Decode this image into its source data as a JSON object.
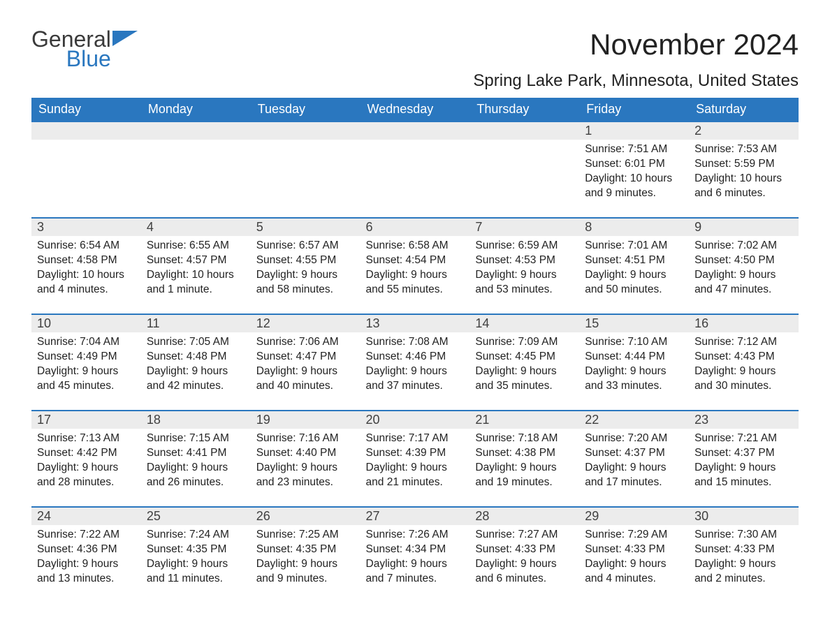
{
  "logo": {
    "word1": "General",
    "word2": "Blue"
  },
  "colors": {
    "brand_blue": "#2a77bf",
    "header_bg": "#2a77bf",
    "header_text": "#ffffff",
    "daynum_bg": "#ececec",
    "text": "#222222",
    "page_bg": "#ffffff"
  },
  "title": "November 2024",
  "location": "Spring Lake Park, Minnesota, United States",
  "day_headers": [
    "Sunday",
    "Monday",
    "Tuesday",
    "Wednesday",
    "Thursday",
    "Friday",
    "Saturday"
  ],
  "weeks": [
    [
      {
        "blank": true
      },
      {
        "blank": true
      },
      {
        "blank": true
      },
      {
        "blank": true
      },
      {
        "blank": true
      },
      {
        "day": "1",
        "sunrise": "Sunrise: 7:51 AM",
        "sunset": "Sunset: 6:01 PM",
        "daylight": "Daylight: 10 hours and 9 minutes."
      },
      {
        "day": "2",
        "sunrise": "Sunrise: 7:53 AM",
        "sunset": "Sunset: 5:59 PM",
        "daylight": "Daylight: 10 hours and 6 minutes."
      }
    ],
    [
      {
        "day": "3",
        "sunrise": "Sunrise: 6:54 AM",
        "sunset": "Sunset: 4:58 PM",
        "daylight": "Daylight: 10 hours and 4 minutes."
      },
      {
        "day": "4",
        "sunrise": "Sunrise: 6:55 AM",
        "sunset": "Sunset: 4:57 PM",
        "daylight": "Daylight: 10 hours and 1 minute."
      },
      {
        "day": "5",
        "sunrise": "Sunrise: 6:57 AM",
        "sunset": "Sunset: 4:55 PM",
        "daylight": "Daylight: 9 hours and 58 minutes."
      },
      {
        "day": "6",
        "sunrise": "Sunrise: 6:58 AM",
        "sunset": "Sunset: 4:54 PM",
        "daylight": "Daylight: 9 hours and 55 minutes."
      },
      {
        "day": "7",
        "sunrise": "Sunrise: 6:59 AM",
        "sunset": "Sunset: 4:53 PM",
        "daylight": "Daylight: 9 hours and 53 minutes."
      },
      {
        "day": "8",
        "sunrise": "Sunrise: 7:01 AM",
        "sunset": "Sunset: 4:51 PM",
        "daylight": "Daylight: 9 hours and 50 minutes."
      },
      {
        "day": "9",
        "sunrise": "Sunrise: 7:02 AM",
        "sunset": "Sunset: 4:50 PM",
        "daylight": "Daylight: 9 hours and 47 minutes."
      }
    ],
    [
      {
        "day": "10",
        "sunrise": "Sunrise: 7:04 AM",
        "sunset": "Sunset: 4:49 PM",
        "daylight": "Daylight: 9 hours and 45 minutes."
      },
      {
        "day": "11",
        "sunrise": "Sunrise: 7:05 AM",
        "sunset": "Sunset: 4:48 PM",
        "daylight": "Daylight: 9 hours and 42 minutes."
      },
      {
        "day": "12",
        "sunrise": "Sunrise: 7:06 AM",
        "sunset": "Sunset: 4:47 PM",
        "daylight": "Daylight: 9 hours and 40 minutes."
      },
      {
        "day": "13",
        "sunrise": "Sunrise: 7:08 AM",
        "sunset": "Sunset: 4:46 PM",
        "daylight": "Daylight: 9 hours and 37 minutes."
      },
      {
        "day": "14",
        "sunrise": "Sunrise: 7:09 AM",
        "sunset": "Sunset: 4:45 PM",
        "daylight": "Daylight: 9 hours and 35 minutes."
      },
      {
        "day": "15",
        "sunrise": "Sunrise: 7:10 AM",
        "sunset": "Sunset: 4:44 PM",
        "daylight": "Daylight: 9 hours and 33 minutes."
      },
      {
        "day": "16",
        "sunrise": "Sunrise: 7:12 AM",
        "sunset": "Sunset: 4:43 PM",
        "daylight": "Daylight: 9 hours and 30 minutes."
      }
    ],
    [
      {
        "day": "17",
        "sunrise": "Sunrise: 7:13 AM",
        "sunset": "Sunset: 4:42 PM",
        "daylight": "Daylight: 9 hours and 28 minutes."
      },
      {
        "day": "18",
        "sunrise": "Sunrise: 7:15 AM",
        "sunset": "Sunset: 4:41 PM",
        "daylight": "Daylight: 9 hours and 26 minutes."
      },
      {
        "day": "19",
        "sunrise": "Sunrise: 7:16 AM",
        "sunset": "Sunset: 4:40 PM",
        "daylight": "Daylight: 9 hours and 23 minutes."
      },
      {
        "day": "20",
        "sunrise": "Sunrise: 7:17 AM",
        "sunset": "Sunset: 4:39 PM",
        "daylight": "Daylight: 9 hours and 21 minutes."
      },
      {
        "day": "21",
        "sunrise": "Sunrise: 7:18 AM",
        "sunset": "Sunset: 4:38 PM",
        "daylight": "Daylight: 9 hours and 19 minutes."
      },
      {
        "day": "22",
        "sunrise": "Sunrise: 7:20 AM",
        "sunset": "Sunset: 4:37 PM",
        "daylight": "Daylight: 9 hours and 17 minutes."
      },
      {
        "day": "23",
        "sunrise": "Sunrise: 7:21 AM",
        "sunset": "Sunset: 4:37 PM",
        "daylight": "Daylight: 9 hours and 15 minutes."
      }
    ],
    [
      {
        "day": "24",
        "sunrise": "Sunrise: 7:22 AM",
        "sunset": "Sunset: 4:36 PM",
        "daylight": "Daylight: 9 hours and 13 minutes."
      },
      {
        "day": "25",
        "sunrise": "Sunrise: 7:24 AM",
        "sunset": "Sunset: 4:35 PM",
        "daylight": "Daylight: 9 hours and 11 minutes."
      },
      {
        "day": "26",
        "sunrise": "Sunrise: 7:25 AM",
        "sunset": "Sunset: 4:35 PM",
        "daylight": "Daylight: 9 hours and 9 minutes."
      },
      {
        "day": "27",
        "sunrise": "Sunrise: 7:26 AM",
        "sunset": "Sunset: 4:34 PM",
        "daylight": "Daylight: 9 hours and 7 minutes."
      },
      {
        "day": "28",
        "sunrise": "Sunrise: 7:27 AM",
        "sunset": "Sunset: 4:33 PM",
        "daylight": "Daylight: 9 hours and 6 minutes."
      },
      {
        "day": "29",
        "sunrise": "Sunrise: 7:29 AM",
        "sunset": "Sunset: 4:33 PM",
        "daylight": "Daylight: 9 hours and 4 minutes."
      },
      {
        "day": "30",
        "sunrise": "Sunrise: 7:30 AM",
        "sunset": "Sunset: 4:33 PM",
        "daylight": "Daylight: 9 hours and 2 minutes."
      }
    ]
  ]
}
